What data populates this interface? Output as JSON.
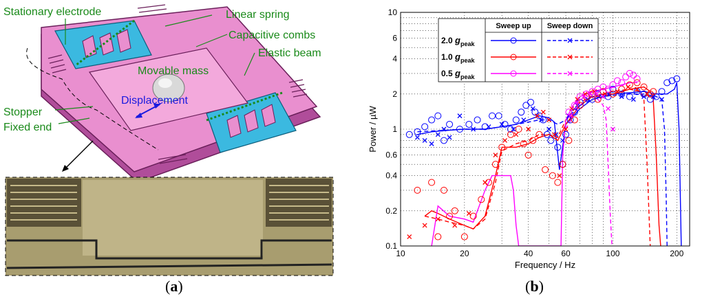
{
  "panel_a": {
    "caption_open": "(",
    "caption_letter": "a",
    "caption_close": ")",
    "labels": {
      "stationary_electrode": "Stationary electrode",
      "linear_spring": "Linear spring",
      "capacitive_combs": "Capacitive combs",
      "elastic_beam": "Elastic beam",
      "movable_mass": "Movable mass",
      "displacement": "Displacement",
      "stopper": "Stopper",
      "fixed_end": "Fixed end"
    },
    "colors": {
      "structure": "#e98fcf",
      "structure_dark": "#b04d9a",
      "electrode": "#3bb9e0",
      "label_green": "#1a8a1a",
      "label_blue": "#1a1adf"
    }
  },
  "panel_b": {
    "caption_open": "(",
    "caption_letter": "b",
    "caption_close": ")"
  },
  "chart_data": {
    "type": "line",
    "scale": "log-log",
    "xlabel": "Frequency / Hz",
    "ylabel": "Power / µW",
    "xlim": [
      10,
      230
    ],
    "ylim": [
      0.1,
      10
    ],
    "xticks": [
      10,
      20,
      40,
      60,
      100,
      200
    ],
    "yticks": [
      0.1,
      0.2,
      0.4,
      0.6,
      1,
      2,
      4,
      6,
      10
    ],
    "grid": true,
    "legend": {
      "position": "top-left",
      "headers": [
        "Sweep up",
        "Sweep down"
      ],
      "rows": [
        {
          "label": "2.0",
          "g": "g",
          "sub": "peak",
          "color": "#0000ff"
        },
        {
          "label": "1.0",
          "g": "g",
          "sub": "peak",
          "color": "#ff0000"
        },
        {
          "label": "0.5",
          "g": "g",
          "sub": "peak",
          "color": "#ff00ff"
        }
      ]
    },
    "series": [
      {
        "accel": "2.0",
        "direction": "up",
        "style": "solid",
        "color": "#0000ff",
        "x": [
          12,
          14,
          17,
          20,
          25,
          30,
          35,
          40,
          45,
          50,
          53,
          56,
          60,
          70,
          80,
          90,
          100,
          120,
          140,
          160,
          180,
          195,
          200,
          205,
          210
        ],
        "y": [
          0.9,
          0.95,
          0.98,
          1.0,
          1.0,
          1.05,
          1.1,
          1.2,
          1.3,
          1.25,
          1.15,
          0.45,
          1.1,
          1.5,
          1.8,
          1.9,
          2.0,
          2.05,
          2.1,
          2.0,
          2.0,
          2.2,
          2.5,
          1.0,
          0.1
        ]
      },
      {
        "accel": "2.0",
        "direction": "down",
        "style": "dashed",
        "color": "#0000ff",
        "x": [
          12,
          15,
          20,
          25,
          30,
          35,
          40,
          45,
          50,
          55,
          60,
          70,
          80,
          90,
          100,
          120,
          140,
          160,
          170,
          175,
          178,
          180
        ],
        "y": [
          0.95,
          0.97,
          1.0,
          1.0,
          1.05,
          1.1,
          1.15,
          1.2,
          1.2,
          1.1,
          1.2,
          1.6,
          1.8,
          1.9,
          1.95,
          2.0,
          2.0,
          1.9,
          1.8,
          1.0,
          0.3,
          0.1
        ]
      },
      {
        "accel": "1.0",
        "direction": "up",
        "style": "solid",
        "color": "#ff0000",
        "x": [
          13,
          14,
          15,
          17,
          20,
          22,
          25,
          28,
          30,
          35,
          40,
          45,
          50,
          55,
          60,
          70,
          80,
          90,
          100,
          120,
          140,
          150,
          155,
          160,
          165,
          168
        ],
        "y": [
          0.18,
          0.2,
          0.19,
          0.17,
          0.15,
          0.14,
          0.18,
          0.4,
          0.7,
          0.7,
          0.75,
          0.85,
          0.9,
          0.8,
          1.1,
          1.6,
          1.9,
          2.0,
          2.0,
          2.2,
          2.3,
          2.1,
          1.8,
          0.6,
          0.15,
          0.1
        ]
      },
      {
        "accel": "1.0",
        "direction": "down",
        "style": "dashed",
        "color": "#ff0000",
        "x": [
          13,
          15,
          17,
          20,
          22,
          25,
          28,
          30,
          35,
          40,
          45,
          50,
          55,
          60,
          70,
          80,
          90,
          100,
          120,
          135,
          140,
          145,
          150
        ],
        "y": [
          0.18,
          0.17,
          0.16,
          0.15,
          0.14,
          0.17,
          0.35,
          0.65,
          0.75,
          0.8,
          0.9,
          0.9,
          0.85,
          1.2,
          1.7,
          1.9,
          2.0,
          2.1,
          2.2,
          2.1,
          1.8,
          0.5,
          0.1
        ]
      },
      {
        "accel": "0.5",
        "direction": "up",
        "style": "solid",
        "color": "#ff00ff",
        "x": [
          14,
          15,
          17,
          20,
          22,
          25,
          27,
          30,
          33,
          34,
          35,
          36,
          57,
          58,
          60,
          65,
          70,
          80,
          90,
          100,
          110,
          120,
          130
        ],
        "y": [
          0.1,
          0.22,
          0.18,
          0.17,
          0.16,
          0.3,
          0.4,
          0.4,
          0.4,
          0.3,
          0.15,
          0.1,
          0.1,
          0.6,
          1.2,
          1.6,
          1.9,
          2.1,
          2.2,
          2.3,
          2.4,
          2.5,
          2.5
        ]
      },
      {
        "accel": "0.5",
        "direction": "down",
        "style": "dashed",
        "color": "#ff00ff",
        "x": [
          60,
          65,
          70,
          75,
          80,
          85,
          90,
          93,
          95,
          97,
          99
        ],
        "y": [
          1.0,
          1.3,
          1.6,
          1.8,
          1.9,
          1.8,
          1.6,
          1.2,
          0.5,
          0.2,
          0.1
        ]
      }
    ],
    "markers": [
      {
        "color": "#0000ff",
        "symbol": "o",
        "points": [
          [
            11,
            0.9
          ],
          [
            12,
            0.95
          ],
          [
            13,
            1.05
          ],
          [
            14,
            1.2
          ],
          [
            15,
            1.3
          ],
          [
            16,
            0.8
          ],
          [
            17,
            1.1
          ],
          [
            19,
            1.0
          ],
          [
            21,
            1.1
          ],
          [
            23,
            1.2
          ],
          [
            25,
            1.05
          ],
          [
            27,
            1.3
          ],
          [
            29,
            1.3
          ],
          [
            31,
            1.1
          ],
          [
            33,
            1.0
          ],
          [
            35,
            1.2
          ],
          [
            37,
            1.4
          ],
          [
            39,
            1.6
          ],
          [
            41,
            1.7
          ],
          [
            43,
            1.4
          ],
          [
            45,
            1.3
          ],
          [
            47,
            1.2
          ],
          [
            49,
            0.9
          ],
          [
            51,
            0.8
          ],
          [
            55,
            0.7
          ],
          [
            58,
            0.5
          ],
          [
            60,
            0.9
          ],
          [
            63,
            1.2
          ],
          [
            66,
            1.4
          ],
          [
            70,
            1.7
          ],
          [
            75,
            1.9
          ],
          [
            80,
            1.8
          ],
          [
            85,
            2.0
          ],
          [
            90,
            2.1
          ],
          [
            95,
            1.9
          ],
          [
            100,
            2.2
          ],
          [
            110,
            2.0
          ],
          [
            120,
            1.9
          ],
          [
            130,
            2.1
          ],
          [
            140,
            2.0
          ],
          [
            150,
            1.8
          ],
          [
            160,
            1.9
          ],
          [
            170,
            2.1
          ],
          [
            180,
            2.5
          ],
          [
            190,
            2.6
          ],
          [
            200,
            2.7
          ]
        ]
      },
      {
        "color": "#0000ff",
        "symbol": "x",
        "points": [
          [
            12,
            0.85
          ],
          [
            13,
            0.8
          ],
          [
            14,
            0.75
          ],
          [
            15,
            0.9
          ],
          [
            16,
            1.0
          ],
          [
            17,
            0.85
          ],
          [
            19,
            1.3
          ],
          [
            22,
            1.0
          ],
          [
            26,
            1.05
          ],
          [
            30,
            1.1
          ],
          [
            34,
            1.0
          ],
          [
            38,
            1.2
          ],
          [
            42,
            1.5
          ],
          [
            46,
            1.2
          ],
          [
            50,
            1.0
          ],
          [
            54,
            0.9
          ],
          [
            58,
            0.8
          ],
          [
            62,
            1.3
          ],
          [
            68,
            1.6
          ],
          [
            76,
            1.8
          ],
          [
            86,
            1.9
          ],
          [
            96,
            2.0
          ],
          [
            110,
            1.9
          ],
          [
            125,
            1.8
          ],
          [
            140,
            1.9
          ],
          [
            155,
            1.9
          ],
          [
            170,
            1.8
          ]
        ]
      },
      {
        "color": "#ff0000",
        "symbol": "o",
        "points": [
          [
            12,
            0.3
          ],
          [
            14,
            0.35
          ],
          [
            15,
            0.12
          ],
          [
            16,
            0.3
          ],
          [
            17,
            0.18
          ],
          [
            18,
            0.2
          ],
          [
            20,
            0.12
          ],
          [
            22,
            0.18
          ],
          [
            24,
            0.25
          ],
          [
            26,
            0.35
          ],
          [
            28,
            0.5
          ],
          [
            30,
            0.7
          ],
          [
            33,
            0.9
          ],
          [
            36,
            1.0
          ],
          [
            38,
            0.75
          ],
          [
            40,
            0.6
          ],
          [
            42,
            0.8
          ],
          [
            45,
            0.9
          ],
          [
            48,
            0.45
          ],
          [
            52,
            0.4
          ],
          [
            55,
            0.35
          ],
          [
            58,
            0.5
          ],
          [
            62,
            0.8
          ],
          [
            66,
            1.2
          ],
          [
            70,
            1.6
          ],
          [
            75,
            1.9
          ],
          [
            80,
            2.0
          ],
          [
            85,
            1.8
          ],
          [
            90,
            2.1
          ],
          [
            100,
            2.0
          ],
          [
            110,
            2.2
          ],
          [
            120,
            2.4
          ],
          [
            130,
            2.5
          ],
          [
            140,
            2.3
          ],
          [
            150,
            2.0
          ],
          [
            155,
            2.1
          ]
        ]
      },
      {
        "color": "#ff0000",
        "symbol": "x",
        "points": [
          [
            11,
            0.12
          ],
          [
            13,
            0.15
          ],
          [
            15,
            0.17
          ],
          [
            18,
            0.15
          ],
          [
            21,
            0.19
          ],
          [
            25,
            0.35
          ],
          [
            28,
            0.6
          ],
          [
            31,
            0.8
          ],
          [
            35,
            0.9
          ],
          [
            40,
            1.0
          ],
          [
            44,
            1.3
          ],
          [
            47,
            1.4
          ],
          [
            50,
            1.2
          ],
          [
            53,
            0.9
          ],
          [
            56,
            0.4
          ],
          [
            60,
            1.0
          ],
          [
            64,
            1.5
          ],
          [
            68,
            1.8
          ],
          [
            74,
            2.0
          ],
          [
            82,
            2.1
          ],
          [
            92,
            2.0
          ],
          [
            105,
            2.1
          ],
          [
            118,
            2.3
          ],
          [
            130,
            2.2
          ],
          [
            145,
            2.0
          ]
        ]
      },
      {
        "color": "#ff00ff",
        "symbol": "o",
        "points": [
          [
            62,
            1.4
          ],
          [
            66,
            1.6
          ],
          [
            70,
            1.9
          ],
          [
            75,
            2.0
          ],
          [
            80,
            2.1
          ],
          [
            85,
            2.2
          ],
          [
            90,
            2.3
          ],
          [
            95,
            2.2
          ],
          [
            100,
            2.4
          ],
          [
            105,
            2.6
          ],
          [
            110,
            2.5
          ],
          [
            115,
            2.8
          ],
          [
            120,
            3.0
          ],
          [
            125,
            2.9
          ],
          [
            130,
            2.7
          ]
        ]
      },
      {
        "color": "#ff00ff",
        "symbol": "x",
        "points": [
          [
            63,
            1.3
          ],
          [
            68,
            1.7
          ],
          [
            73,
            1.9
          ],
          [
            78,
            2.0
          ],
          [
            84,
            2.0
          ],
          [
            90,
            1.9
          ],
          [
            95,
            1.5
          ],
          [
            100,
            1.0
          ]
        ]
      }
    ]
  }
}
